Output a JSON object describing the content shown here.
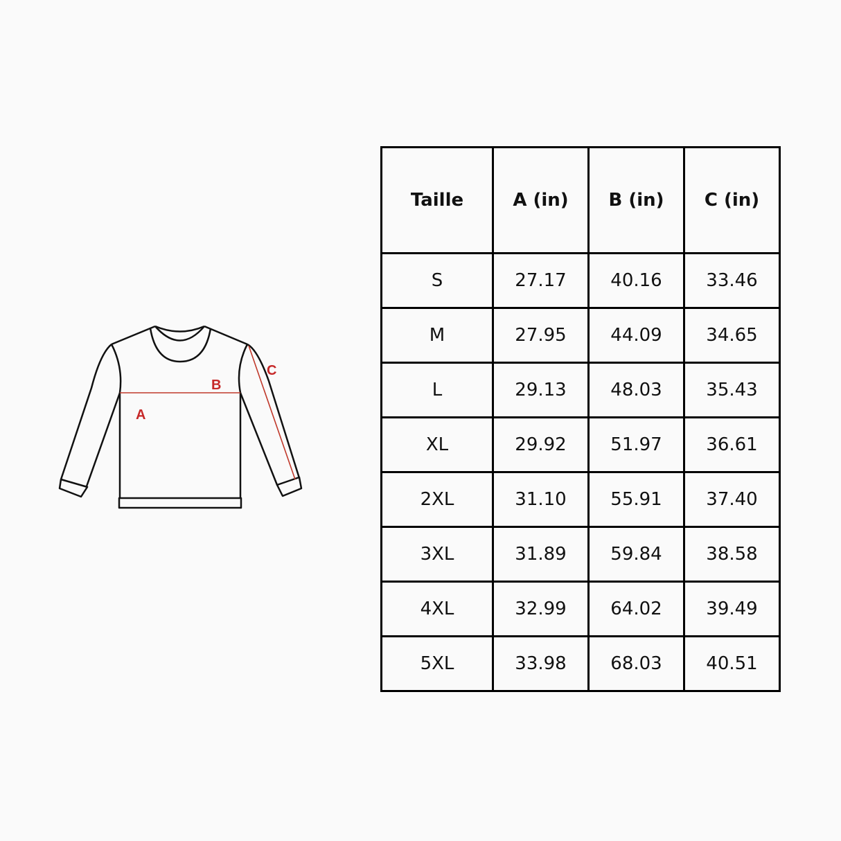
{
  "diagram": {
    "labels": {
      "a": "A",
      "b": "B",
      "c": "C"
    },
    "measure_line_color": "#c0392b",
    "label_color": "#c62828"
  },
  "table": {
    "headers": [
      "Taille",
      "A (in)",
      "B (in)",
      "C (in)"
    ],
    "rows": [
      [
        "S",
        "27.17",
        "40.16",
        "33.46"
      ],
      [
        "M",
        "27.95",
        "44.09",
        "34.65"
      ],
      [
        "L",
        "29.13",
        "48.03",
        "35.43"
      ],
      [
        "XL",
        "29.92",
        "51.97",
        "36.61"
      ],
      [
        "2XL",
        "31.10",
        "55.91",
        "37.40"
      ],
      [
        "3XL",
        "31.89",
        "59.84",
        "38.58"
      ],
      [
        "4XL",
        "32.99",
        "64.02",
        "39.49"
      ],
      [
        "5XL",
        "33.98",
        "68.03",
        "40.51"
      ]
    ]
  }
}
